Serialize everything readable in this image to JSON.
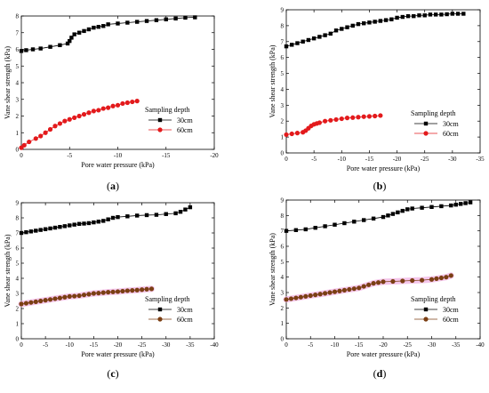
{
  "figure": {
    "panels": [
      {
        "caption": "(a)",
        "xlabel": "Pore water pressure (kPa)",
        "ylabel": "Vane shear strength (kPa)",
        "legend_title": "Sampling depth"
      },
      {
        "caption": "(b)",
        "xlabel": "Pore water pressure (kPa)",
        "ylabel": "Vane shear strength (kPa)",
        "legend_title": "Sampling depth"
      },
      {
        "caption": "(c)",
        "xlabel": "Pore water pressure (kPa)",
        "ylabel": "Vane shear strength (kPa)",
        "legend_title": "Sampling depth"
      },
      {
        "caption": "(d)",
        "xlabel": "Pore water pressure (kPa)",
        "ylabel": "Vane shear strength (kPa)",
        "legend_title": "Sampling depth"
      }
    ]
  },
  "chart_data": [
    {
      "type": "line",
      "title": "",
      "caption": "(a)",
      "xlabel": "Pore water pressure (kPa)",
      "ylabel": "Vane shear strength (kPa)",
      "xlim": [
        0,
        -20
      ],
      "ylim": [
        0,
        8
      ],
      "xticks": [
        0,
        -5,
        -10,
        -15,
        -20
      ],
      "xtick_labels": [
        "0",
        "-5",
        "-10",
        "-15",
        "-20"
      ],
      "yticks": [
        0,
        1,
        2,
        3,
        4,
        5,
        6,
        7,
        8
      ],
      "yticks_labels": [
        "0",
        "1",
        "2",
        "3",
        "4",
        "5",
        "6",
        "7",
        "8"
      ],
      "legend_title": "Sampling depth",
      "legend_position": "lower-right",
      "series": [
        {
          "name": "30cm",
          "color": "#000000",
          "marker": "square",
          "x": [
            0,
            -0.5,
            -1.2,
            -2,
            -3,
            -4,
            -4.8,
            -5.0,
            -5.2,
            -5.5,
            -6,
            -6.5,
            -7,
            -7.5,
            -8,
            -8.5,
            -9,
            -10,
            -11,
            -12,
            -13,
            -14,
            -15,
            -16,
            -17,
            -18
          ],
          "y": [
            5.9,
            5.95,
            6.0,
            6.05,
            6.15,
            6.25,
            6.35,
            6.5,
            6.7,
            6.9,
            7.0,
            7.1,
            7.2,
            7.3,
            7.35,
            7.4,
            7.5,
            7.55,
            7.6,
            7.65,
            7.7,
            7.75,
            7.8,
            7.85,
            7.9,
            7.92
          ]
        },
        {
          "name": "60cm",
          "color": "#e31a1c",
          "marker": "circle",
          "x": [
            0,
            -0.3,
            -0.8,
            -1.5,
            -2,
            -2.5,
            -3,
            -3.5,
            -4,
            -4.5,
            -5,
            -5.5,
            -6,
            -6.5,
            -7,
            -7.5,
            -8,
            -8.5,
            -9,
            -9.5,
            -10,
            -10.5,
            -11,
            -11.5,
            -12
          ],
          "y": [
            0.1,
            0.25,
            0.45,
            0.65,
            0.8,
            1.0,
            1.2,
            1.4,
            1.55,
            1.7,
            1.8,
            1.9,
            2.0,
            2.1,
            2.2,
            2.3,
            2.35,
            2.45,
            2.5,
            2.6,
            2.65,
            2.75,
            2.8,
            2.85,
            2.9
          ]
        }
      ]
    },
    {
      "type": "line",
      "title": "",
      "caption": "(b)",
      "xlabel": "Pore water pressure (kPa)",
      "ylabel": "Vane shear strength (kPa)",
      "xlim": [
        0,
        -35
      ],
      "ylim": [
        0,
        9
      ],
      "xticks": [
        0,
        -5,
        -10,
        -15,
        -20,
        -25,
        -30,
        -35
      ],
      "xtick_labels": [
        "0",
        "-5",
        "-10",
        "-15",
        "-20",
        "-25",
        "-30",
        "-35"
      ],
      "yticks": [
        0,
        1,
        2,
        3,
        4,
        5,
        6,
        7,
        8,
        9
      ],
      "yticks_labels": [
        "0",
        "1",
        "2",
        "3",
        "4",
        "5",
        "6",
        "7",
        "8",
        "9"
      ],
      "legend_title": "Sampling depth",
      "legend_position": "lower-right",
      "series": [
        {
          "name": "30cm",
          "color": "#000000",
          "marker": "square",
          "x": [
            0,
            -1,
            -2,
            -3,
            -4,
            -5,
            -6,
            -7,
            -8,
            -9,
            -10,
            -11,
            -12,
            -13,
            -14,
            -15,
            -16,
            -17,
            -18,
            -19,
            -20,
            -21,
            -22,
            -23,
            -24,
            -25,
            -26,
            -27,
            -28,
            -29,
            -30,
            -31,
            -32
          ],
          "y": [
            6.7,
            6.8,
            6.9,
            7.0,
            7.1,
            7.2,
            7.3,
            7.4,
            7.5,
            7.7,
            7.8,
            7.9,
            8.0,
            8.1,
            8.15,
            8.2,
            8.25,
            8.3,
            8.35,
            8.4,
            8.5,
            8.55,
            8.6,
            8.6,
            8.65,
            8.65,
            8.7,
            8.7,
            8.7,
            8.72,
            8.75,
            8.75,
            8.75
          ]
        },
        {
          "name": "60cm",
          "color": "#e31a1c",
          "marker": "circle",
          "x": [
            0,
            -1,
            -2,
            -3,
            -3.5,
            -4,
            -4.5,
            -5,
            -5.5,
            -6,
            -7,
            -8,
            -9,
            -10,
            -11,
            -12,
            -13,
            -14,
            -15,
            -16,
            -17
          ],
          "y": [
            1.15,
            1.2,
            1.25,
            1.3,
            1.4,
            1.55,
            1.7,
            1.8,
            1.85,
            1.9,
            2.0,
            2.05,
            2.1,
            2.15,
            2.2,
            2.22,
            2.25,
            2.28,
            2.3,
            2.32,
            2.35
          ]
        }
      ]
    },
    {
      "type": "line",
      "title": "",
      "caption": "(c)",
      "xlabel": "Pore water pressure (kPa)",
      "ylabel": "Vane shear strength (kPa)",
      "xlim": [
        0,
        -40
      ],
      "ylim": [
        0,
        9
      ],
      "xticks": [
        0,
        -5,
        -10,
        -15,
        -20,
        -25,
        -30,
        -35,
        -40
      ],
      "xtick_labels": [
        "0",
        "-5",
        "-10",
        "-15",
        "-20",
        "-25",
        "-30",
        "-35",
        "-40"
      ],
      "yticks": [
        0,
        1,
        2,
        3,
        4,
        5,
        6,
        7,
        8,
        9
      ],
      "yticks_labels": [
        "0",
        "1",
        "2",
        "3",
        "4",
        "5",
        "6",
        "7",
        "8",
        "9"
      ],
      "legend_title": "Sampling depth",
      "legend_position": "lower-right",
      "series": [
        {
          "name": "30cm",
          "color": "#000000",
          "marker": "square",
          "x": [
            0,
            -1,
            -2,
            -3,
            -4,
            -5,
            -6,
            -7,
            -8,
            -9,
            -10,
            -11,
            -12,
            -13,
            -14,
            -15,
            -16,
            -17,
            -18,
            -19,
            -20,
            -22,
            -24,
            -26,
            -28,
            -30,
            -32,
            -33,
            -34,
            -35
          ],
          "y": [
            7.0,
            7.05,
            7.1,
            7.15,
            7.2,
            7.25,
            7.3,
            7.35,
            7.4,
            7.45,
            7.5,
            7.55,
            7.6,
            7.62,
            7.65,
            7.7,
            7.75,
            7.8,
            7.9,
            8.0,
            8.05,
            8.1,
            8.15,
            8.18,
            8.2,
            8.25,
            8.3,
            8.4,
            8.55,
            8.7
          ]
        },
        {
          "name": "60cm",
          "color": "#7b3f14",
          "marker": "circle",
          "x": [
            0,
            -1,
            -2,
            -3,
            -4,
            -5,
            -6,
            -7,
            -8,
            -9,
            -10,
            -11,
            -12,
            -13,
            -14,
            -15,
            -16,
            -17,
            -18,
            -19,
            -20,
            -21,
            -22,
            -23,
            -24,
            -25,
            -26,
            -27
          ],
          "y": [
            2.3,
            2.35,
            2.4,
            2.45,
            2.5,
            2.55,
            2.6,
            2.65,
            2.7,
            2.75,
            2.8,
            2.82,
            2.85,
            2.9,
            2.95,
            3.0,
            3.02,
            3.05,
            3.08,
            3.1,
            3.12,
            3.15,
            3.18,
            3.2,
            3.22,
            3.25,
            3.28,
            3.3
          ]
        }
      ]
    },
    {
      "type": "line",
      "title": "",
      "caption": "(d)",
      "xlabel": "Pore water pressure (kPa)",
      "ylabel": "Vane shear strength (kPa)",
      "xlim": [
        0,
        -40
      ],
      "ylim": [
        0,
        9
      ],
      "xticks": [
        0,
        -5,
        -10,
        -15,
        -20,
        -25,
        -30,
        -35,
        -40
      ],
      "xtick_labels": [
        "0",
        "-5",
        "-10",
        "-15",
        "-20",
        "-25",
        "-30",
        "-35",
        "-40"
      ],
      "yticks": [
        0,
        1,
        2,
        3,
        4,
        5,
        6,
        7,
        8,
        9
      ],
      "yticks_labels": [
        "0",
        "1",
        "2",
        "3",
        "4",
        "5",
        "6",
        "7",
        "8",
        "9"
      ],
      "legend_title": "Sampling depth",
      "legend_position": "lower-right",
      "series": [
        {
          "name": "30cm",
          "color": "#000000",
          "marker": "square",
          "x": [
            0,
            -2,
            -4,
            -6,
            -8,
            -10,
            -12,
            -14,
            -16,
            -18,
            -20,
            -21,
            -22,
            -23,
            -24,
            -25,
            -26,
            -28,
            -30,
            -32,
            -34,
            -35,
            -36,
            -37,
            -38
          ],
          "y": [
            7.0,
            7.05,
            7.1,
            7.2,
            7.3,
            7.4,
            7.5,
            7.6,
            7.7,
            7.8,
            7.9,
            8.0,
            8.1,
            8.2,
            8.3,
            8.4,
            8.45,
            8.5,
            8.55,
            8.6,
            8.65,
            8.7,
            8.75,
            8.8,
            8.85
          ]
        },
        {
          "name": "60cm",
          "color": "#7b3f14",
          "marker": "circle",
          "x": [
            0,
            -1,
            -2,
            -3,
            -4,
            -5,
            -6,
            -7,
            -8,
            -9,
            -10,
            -11,
            -12,
            -13,
            -14,
            -15,
            -16,
            -17,
            -18,
            -19,
            -20,
            -22,
            -24,
            -26,
            -28,
            -30,
            -31,
            -32,
            -33,
            -34
          ],
          "y": [
            2.55,
            2.6,
            2.65,
            2.7,
            2.75,
            2.8,
            2.85,
            2.9,
            2.95,
            3.0,
            3.05,
            3.1,
            3.15,
            3.2,
            3.25,
            3.3,
            3.4,
            3.5,
            3.6,
            3.65,
            3.7,
            3.72,
            3.75,
            3.78,
            3.8,
            3.85,
            3.9,
            3.95,
            4.0,
            4.1
          ]
        }
      ]
    }
  ]
}
